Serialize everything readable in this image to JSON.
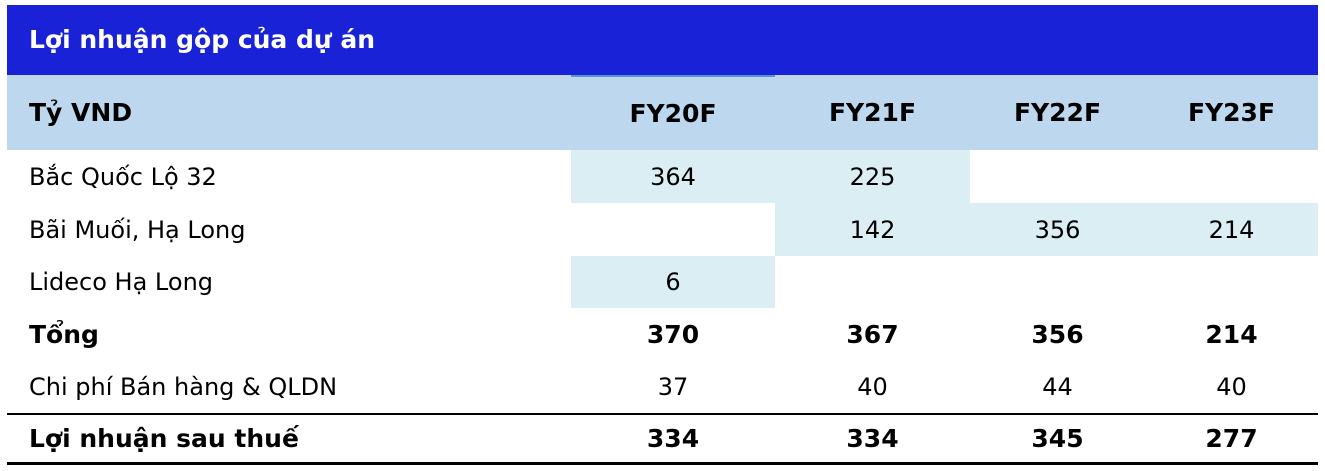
{
  "title": "Lợi nhuận gộp của dự án",
  "table": {
    "header": [
      "Tỷ VND",
      "FY20F",
      "FY21F",
      "FY22F",
      "FY23F"
    ],
    "rows": [
      [
        "Bắc Quốc Lộ 32",
        364,
        225,
        null,
        null
      ],
      [
        "Bãi Muối, Hạ Long",
        null,
        142,
        356,
        214
      ],
      [
        "Lideco Hạ Long",
        6,
        null,
        null,
        null
      ],
      [
        "Tổng",
        370,
        367,
        356,
        214
      ],
      [
        "Chi phí Bán hàng & QLDN",
        37,
        40,
        44,
        40
      ],
      [
        "Lợi nhuận sau thuế",
        334,
        334,
        345,
        277
      ]
    ]
  }
}
